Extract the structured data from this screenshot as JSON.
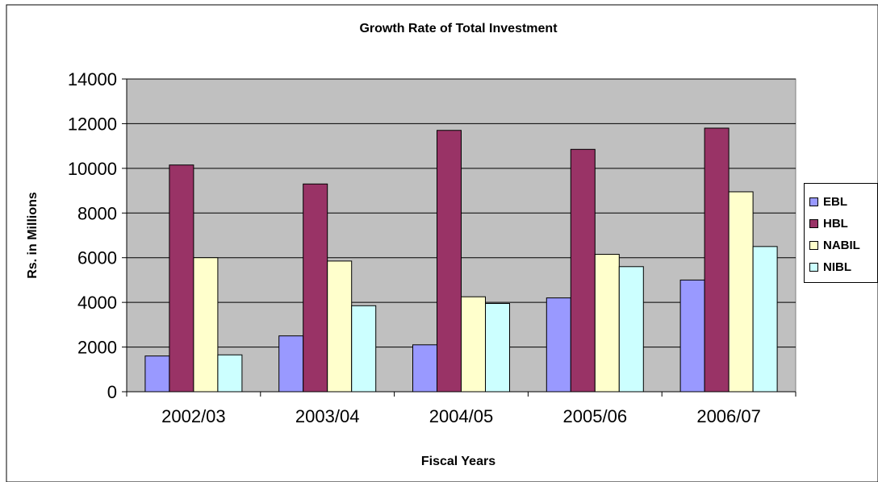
{
  "chart_data": {
    "type": "bar",
    "title": "Growth Rate of Total Investment",
    "xlabel": "Fiscal Years",
    "ylabel": "Rs. in Millions",
    "ylim": [
      0,
      14000
    ],
    "yticks": [
      "0",
      "2000",
      "4000",
      "6000",
      "8000",
      "10000",
      "12000",
      "14000"
    ],
    "grid": true,
    "legend_position": "right",
    "categories": [
      "2002/03",
      "2003/04",
      "2004/05",
      "2005/06",
      "2006/07"
    ],
    "series": [
      {
        "name": "EBL",
        "color": "#9999FF",
        "values": [
          1600,
          2500,
          2100,
          4200,
          5000
        ]
      },
      {
        "name": "HBL",
        "color": "#993366",
        "values": [
          10150,
          9300,
          11700,
          10850,
          11800
        ]
      },
      {
        "name": "NABIL",
        "color": "#FFFFCC",
        "values": [
          6000,
          5850,
          4250,
          6150,
          8950
        ]
      },
      {
        "name": "NIBL",
        "color": "#CCFFFF",
        "values": [
          1650,
          3850,
          3950,
          5600,
          6500
        ]
      }
    ],
    "plot_background": "#C0C0C0"
  }
}
